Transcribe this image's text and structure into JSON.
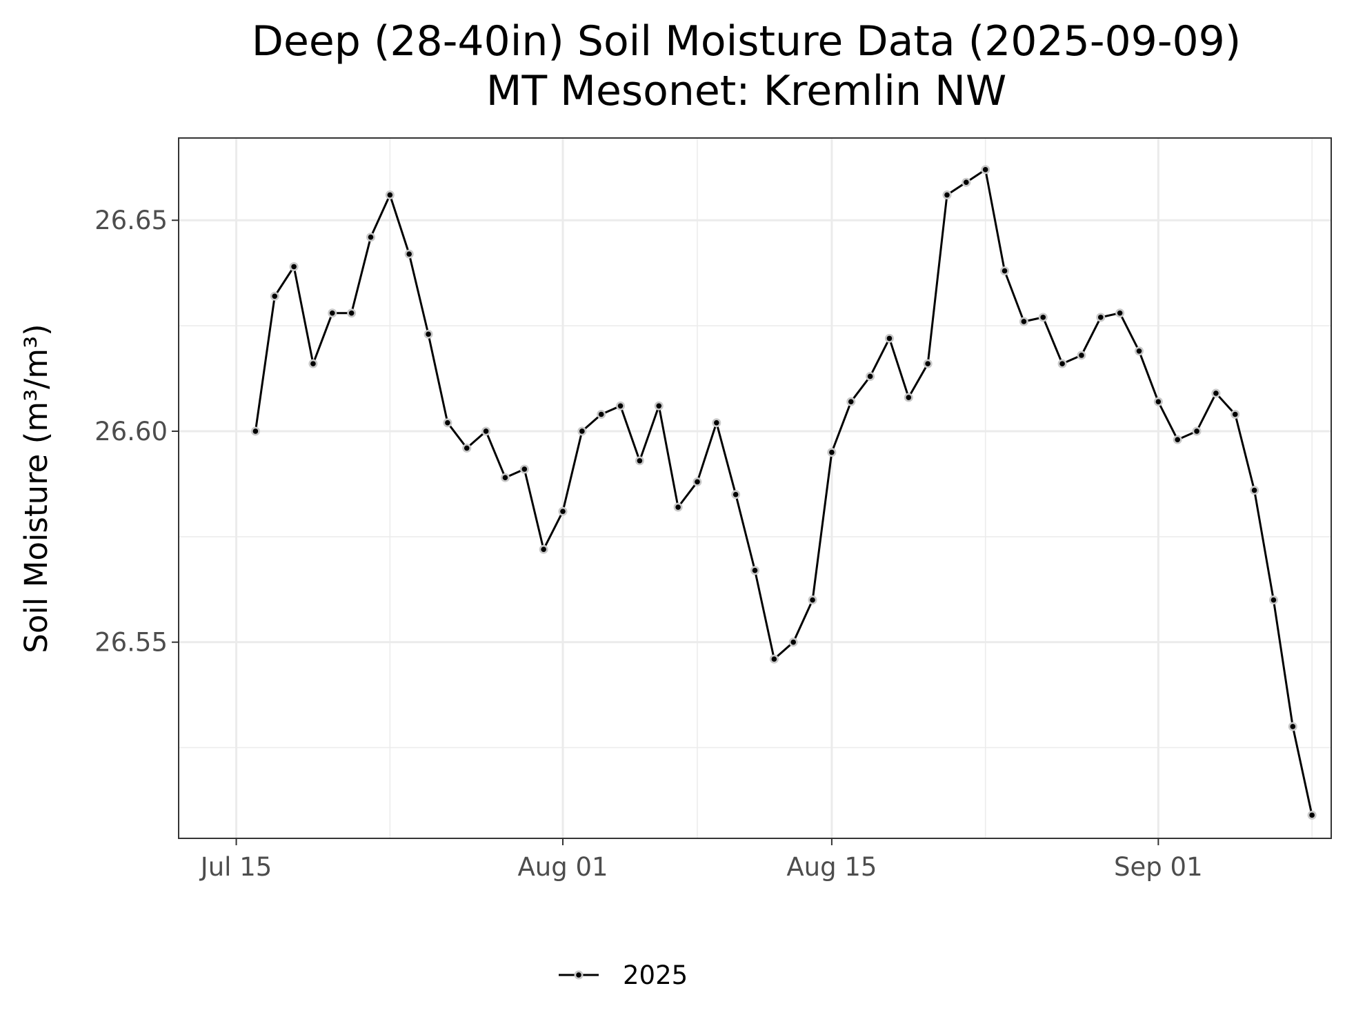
{
  "chart_data": {
    "type": "line",
    "title": "Deep (28-40in) Soil Moisture Data (2025-09-09)",
    "subtitle": "MT Mesonet: Kremlin NW",
    "xlabel": "",
    "ylabel": "Soil Moisture (m³/m³)",
    "x_range": [
      "2025-07-12",
      "2025-09-10"
    ],
    "ylim": [
      26.5035,
      26.6695
    ],
    "x_ticks": [
      {
        "date": "2025-07-15",
        "label": "Jul 15"
      },
      {
        "date": "2025-08-01",
        "label": "Aug 01"
      },
      {
        "date": "2025-08-15",
        "label": "Aug 15"
      },
      {
        "date": "2025-09-01",
        "label": "Sep 01"
      }
    ],
    "x_minor_ticks": [
      "2025-07-23",
      "2025-08-08",
      "2025-08-23",
      "2025-09-09"
    ],
    "y_ticks": [
      26.55,
      26.6,
      26.65
    ],
    "y_minor_ticks": [
      26.525,
      26.575,
      26.625
    ],
    "grid": true,
    "legend_position": "bottom",
    "colors": {
      "line": "#000000",
      "point_fill": "#000000",
      "point_halo": "#c8c8c8",
      "grid": "#ebebeb",
      "panel_border": "#333333",
      "tick_text": "#4d4d4d"
    },
    "series": [
      {
        "name": "2025",
        "x": [
          "2025-07-16",
          "2025-07-17",
          "2025-07-18",
          "2025-07-19",
          "2025-07-20",
          "2025-07-21",
          "2025-07-22",
          "2025-07-23",
          "2025-07-24",
          "2025-07-25",
          "2025-07-26",
          "2025-07-27",
          "2025-07-28",
          "2025-07-29",
          "2025-07-30",
          "2025-07-31",
          "2025-08-01",
          "2025-08-02",
          "2025-08-03",
          "2025-08-04",
          "2025-08-05",
          "2025-08-06",
          "2025-08-07",
          "2025-08-08",
          "2025-08-09",
          "2025-08-10",
          "2025-08-11",
          "2025-08-12",
          "2025-08-13",
          "2025-08-14",
          "2025-08-15",
          "2025-08-16",
          "2025-08-17",
          "2025-08-18",
          "2025-08-19",
          "2025-08-20",
          "2025-08-21",
          "2025-08-22",
          "2025-08-23",
          "2025-08-24",
          "2025-08-25",
          "2025-08-26",
          "2025-08-27",
          "2025-08-28",
          "2025-08-29",
          "2025-08-30",
          "2025-08-31",
          "2025-09-01",
          "2025-09-02",
          "2025-09-03",
          "2025-09-04",
          "2025-09-05",
          "2025-09-06",
          "2025-09-07",
          "2025-09-08",
          "2025-09-09"
        ],
        "values": [
          26.6,
          26.632,
          26.639,
          26.616,
          26.628,
          26.628,
          26.646,
          26.656,
          26.642,
          26.623,
          26.602,
          26.596,
          26.6,
          26.589,
          26.591,
          26.572,
          26.581,
          26.6,
          26.604,
          26.606,
          26.593,
          26.606,
          26.582,
          26.588,
          26.602,
          26.585,
          26.567,
          26.546,
          26.55,
          26.56,
          26.595,
          26.607,
          26.613,
          26.622,
          26.608,
          26.616,
          26.656,
          26.659,
          26.662,
          26.638,
          26.626,
          26.627,
          26.616,
          26.618,
          26.627,
          26.628,
          26.619,
          26.607,
          26.598,
          26.6,
          26.609,
          26.604,
          26.586,
          26.56,
          26.53,
          26.509
        ]
      }
    ]
  }
}
